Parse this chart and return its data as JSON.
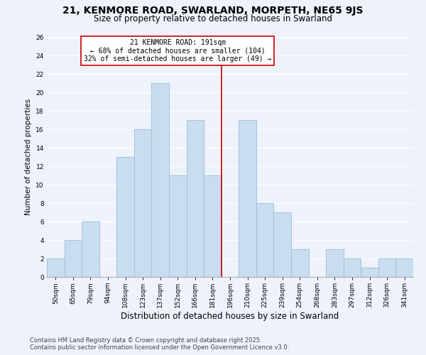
{
  "title": "21, KENMORE ROAD, SWARLAND, MORPETH, NE65 9JS",
  "subtitle": "Size of property relative to detached houses in Swarland",
  "xlabel": "Distribution of detached houses by size in Swarland",
  "ylabel": "Number of detached properties",
  "footnote1": "Contains HM Land Registry data © Crown copyright and database right 2025.",
  "footnote2": "Contains public sector information licensed under the Open Government Licence v3.0.",
  "bin_labels": [
    "50sqm",
    "65sqm",
    "79sqm",
    "94sqm",
    "108sqm",
    "123sqm",
    "137sqm",
    "152sqm",
    "166sqm",
    "181sqm",
    "196sqm",
    "210sqm",
    "225sqm",
    "239sqm",
    "254sqm",
    "268sqm",
    "283sqm",
    "297sqm",
    "312sqm",
    "326sqm",
    "341sqm"
  ],
  "bar_heights": [
    2,
    4,
    6,
    0,
    13,
    16,
    21,
    11,
    17,
    11,
    0,
    17,
    8,
    7,
    3,
    0,
    3,
    2,
    1,
    2,
    2
  ],
  "bar_color": "#c9ddf0",
  "bar_edge_color": "#9bbcd8",
  "vline_x_index": 10,
  "vline_color": "#cc0000",
  "ylim": [
    0,
    26
  ],
  "yticks": [
    0,
    2,
    4,
    6,
    8,
    10,
    12,
    14,
    16,
    18,
    20,
    22,
    24,
    26
  ],
  "annotation_title": "21 KENMORE ROAD: 191sqm",
  "annotation_line1": "← 68% of detached houses are smaller (104)",
  "annotation_line2": "32% of semi-detached houses are larger (49) →",
  "annotation_box_facecolor": "white",
  "annotation_box_edgecolor": "#cc0000",
  "background_color": "#eef2fb",
  "grid_color": "white",
  "title_fontsize": 10,
  "subtitle_fontsize": 8.5,
  "annotation_fontsize": 7,
  "xlabel_fontsize": 8.5,
  "ylabel_fontsize": 7.5,
  "footnote_fontsize": 6,
  "tick_fontsize": 6.5
}
